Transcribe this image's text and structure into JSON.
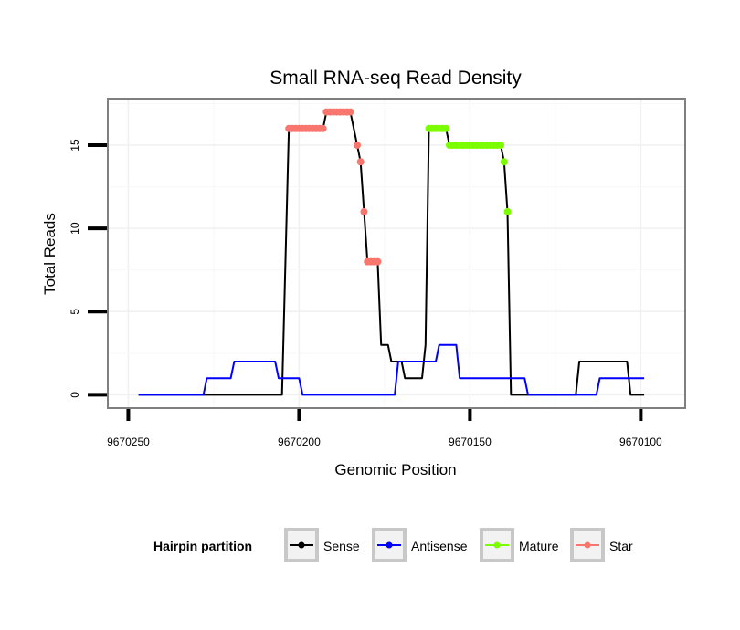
{
  "chart_data": {
    "type": "line",
    "title": "Small RNA-seq Read Density",
    "xlabel": "Genomic Position",
    "ylabel": "Total Reads",
    "xlim": [
      9670256,
      9670087
    ],
    "ylim": [
      -0.8,
      17.8
    ],
    "x_reversed": true,
    "x_ticks": [
      9670250,
      9670200,
      9670150,
      9670100
    ],
    "x_tick_labels": [
      "9670250",
      "9670200",
      "9670150",
      "9670100"
    ],
    "y_ticks": [
      0,
      5,
      10,
      15
    ],
    "y_tick_labels": [
      "0",
      "5",
      "10",
      "15"
    ],
    "grid": true,
    "legend": {
      "title": "Hairpin partition",
      "position": "bottom",
      "entries": [
        {
          "name": "Sense",
          "color": "#000000"
        },
        {
          "name": "Antisense",
          "color": "#0000ff"
        },
        {
          "name": "Mature",
          "color": "#7cfc00"
        },
        {
          "name": "Star",
          "color": "#f8766d"
        }
      ]
    },
    "series": [
      {
        "name": "Sense",
        "color": "#000000",
        "kind": "line",
        "points": [
          [
            9670247,
            0
          ],
          [
            9670205,
            0
          ],
          [
            9670203,
            16
          ],
          [
            9670193,
            16
          ],
          [
            9670192,
            17
          ],
          [
            9670185,
            17
          ],
          [
            9670183,
            15
          ],
          [
            9670182,
            14
          ],
          [
            9670181,
            11
          ],
          [
            9670180,
            8
          ],
          [
            9670177,
            8
          ],
          [
            9670176,
            3
          ],
          [
            9670174,
            3
          ],
          [
            9670173,
            2
          ],
          [
            9670170,
            2
          ],
          [
            9670169,
            1
          ],
          [
            9670164,
            1
          ],
          [
            9670163,
            3
          ],
          [
            9670162,
            16
          ],
          [
            9670157,
            16
          ],
          [
            9670156,
            15
          ],
          [
            9670141,
            15
          ],
          [
            9670140,
            14
          ],
          [
            9670139,
            11
          ],
          [
            9670138,
            0
          ],
          [
            9670119,
            0
          ],
          [
            9670118,
            2
          ],
          [
            9670104,
            2
          ],
          [
            9670103,
            0
          ],
          [
            9670099,
            0
          ]
        ]
      },
      {
        "name": "Antisense",
        "color": "#0000ff",
        "kind": "line",
        "points": [
          [
            9670247,
            0
          ],
          [
            9670228,
            0
          ],
          [
            9670227,
            1
          ],
          [
            9670220,
            1
          ],
          [
            9670219,
            2
          ],
          [
            9670207,
            2
          ],
          [
            9670206,
            1
          ],
          [
            9670200,
            1
          ],
          [
            9670199,
            0
          ],
          [
            9670172,
            0
          ],
          [
            9670171,
            2
          ],
          [
            9670160,
            2
          ],
          [
            9670159,
            3
          ],
          [
            9670154,
            3
          ],
          [
            9670153,
            1
          ],
          [
            9670140,
            1
          ],
          [
            9670139,
            1
          ],
          [
            9670134,
            1
          ],
          [
            9670133,
            0
          ],
          [
            9670113,
            0
          ],
          [
            9670112,
            1
          ],
          [
            9670099,
            1
          ]
        ]
      },
      {
        "name": "Mature",
        "color": "#7cfc00",
        "kind": "points",
        "points": [
          [
            9670162,
            16
          ],
          [
            9670161,
            16
          ],
          [
            9670160,
            16
          ],
          [
            9670159,
            16
          ],
          [
            9670158,
            16
          ],
          [
            9670157,
            16
          ],
          [
            9670156,
            15
          ],
          [
            9670155,
            15
          ],
          [
            9670154,
            15
          ],
          [
            9670153,
            15
          ],
          [
            9670152,
            15
          ],
          [
            9670151,
            15
          ],
          [
            9670150,
            15
          ],
          [
            9670149,
            15
          ],
          [
            9670148,
            15
          ],
          [
            9670147,
            15
          ],
          [
            9670146,
            15
          ],
          [
            9670145,
            15
          ],
          [
            9670144,
            15
          ],
          [
            9670143,
            15
          ],
          [
            9670142,
            15
          ],
          [
            9670141,
            15
          ],
          [
            9670140,
            14
          ],
          [
            9670139,
            11
          ]
        ]
      },
      {
        "name": "Star",
        "color": "#f8766d",
        "kind": "points",
        "points": [
          [
            9670203,
            16
          ],
          [
            9670202,
            16
          ],
          [
            9670201,
            16
          ],
          [
            9670200,
            16
          ],
          [
            9670199,
            16
          ],
          [
            9670198,
            16
          ],
          [
            9670197,
            16
          ],
          [
            9670196,
            16
          ],
          [
            9670195,
            16
          ],
          [
            9670194,
            16
          ],
          [
            9670193,
            16
          ],
          [
            9670192,
            17
          ],
          [
            9670191,
            17
          ],
          [
            9670190,
            17
          ],
          [
            9670189,
            17
          ],
          [
            9670188,
            17
          ],
          [
            9670187,
            17
          ],
          [
            9670186,
            17
          ],
          [
            9670185,
            17
          ],
          [
            9670183,
            15
          ],
          [
            9670182,
            14
          ],
          [
            9670181,
            11
          ],
          [
            9670180,
            8
          ],
          [
            9670179,
            8
          ],
          [
            9670178,
            8
          ],
          [
            9670177,
            8
          ]
        ]
      }
    ]
  }
}
